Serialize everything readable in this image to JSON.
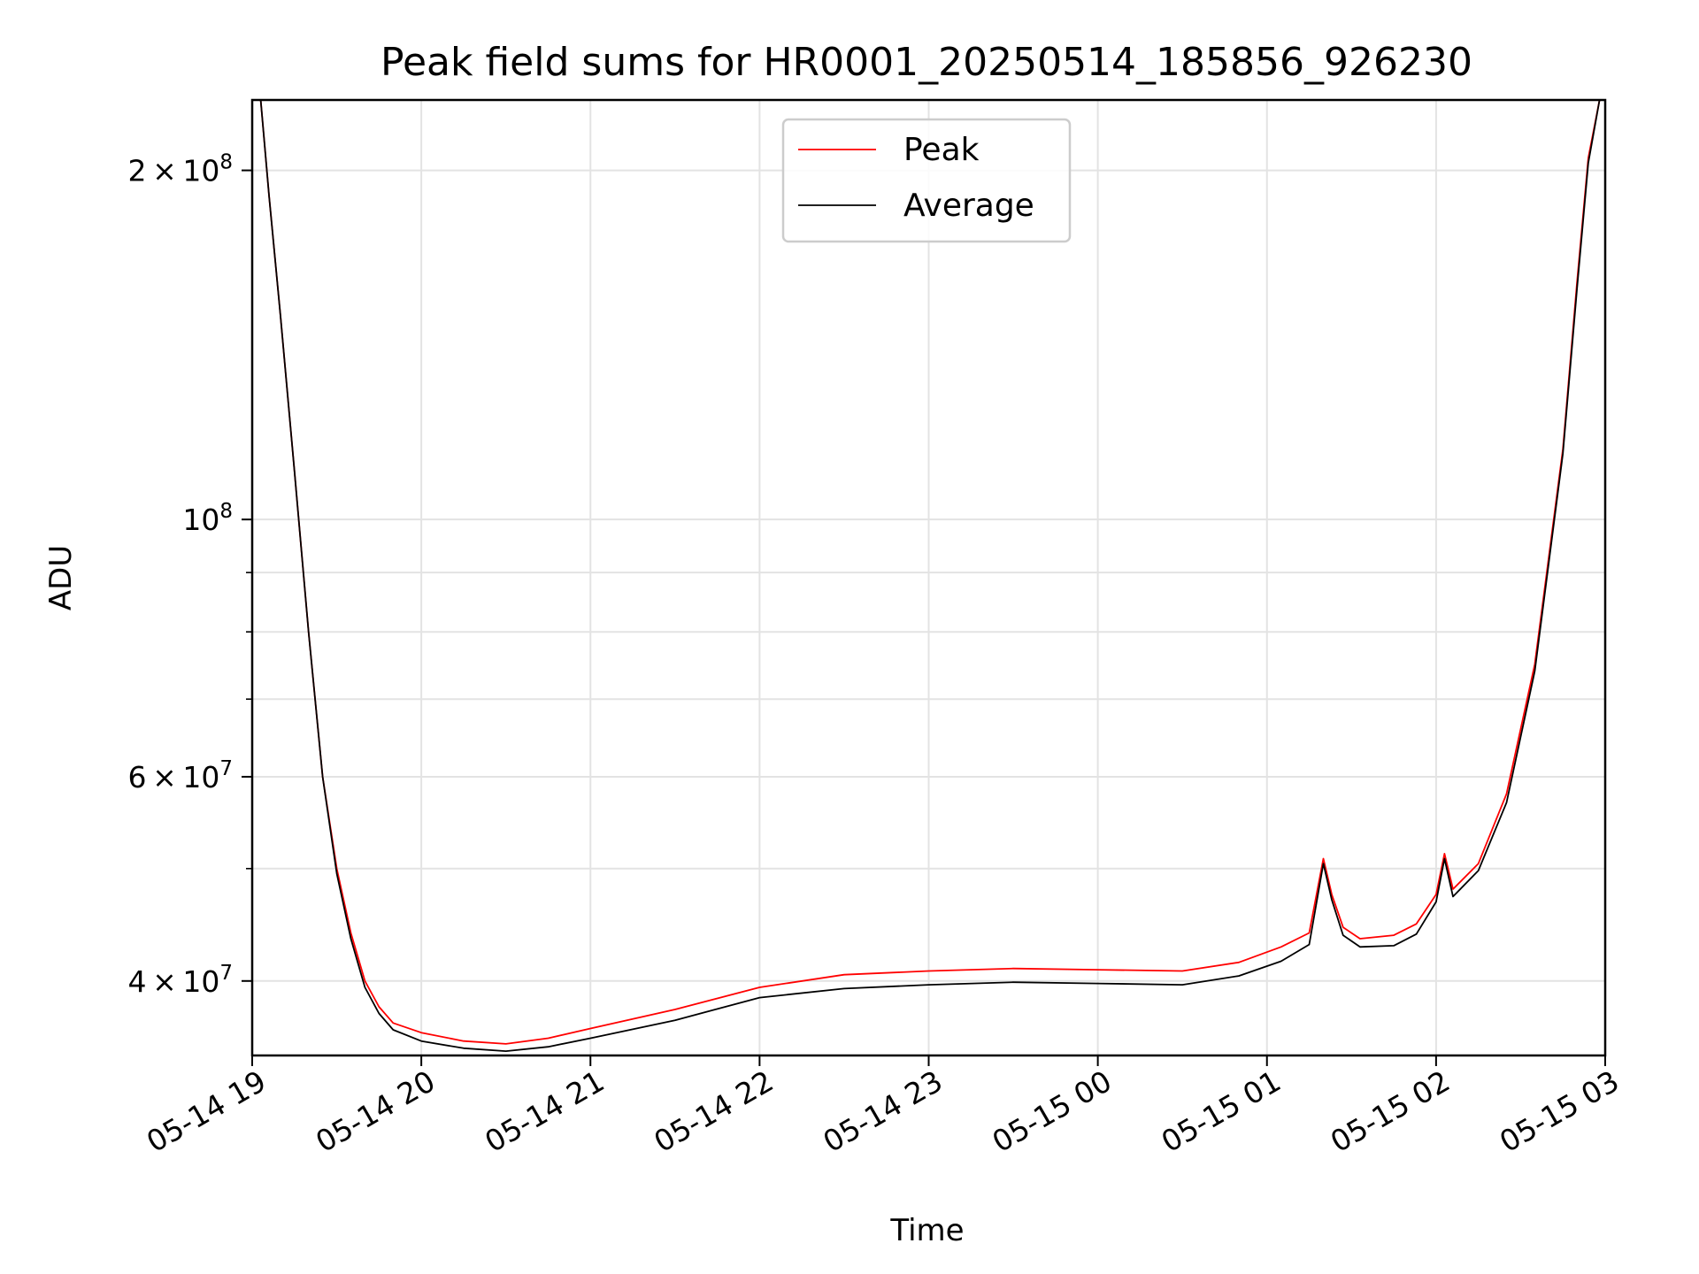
{
  "chart_data": {
    "type": "line",
    "title": "Peak field sums for HR0001_20250514_185856_926230",
    "xlabel": "Time",
    "ylabel": "ADU",
    "x_scale": "time",
    "y_scale": "log",
    "xlim": [
      "2025-05-14 19:00",
      "2025-05-15 03:00"
    ],
    "ylim": [
      34500000,
      230000000
    ],
    "x_ticks": [
      "05-14 19",
      "05-14 20",
      "05-14 21",
      "05-14 22",
      "05-14 23",
      "05-15 00",
      "05-15 01",
      "05-15 02",
      "05-15 03"
    ],
    "y_ticks": [
      {
        "value": 40000000,
        "mantissa": "4",
        "exponent": "7"
      },
      {
        "value": 60000000,
        "mantissa": "6",
        "exponent": "7"
      },
      {
        "value": 100000000,
        "mantissa": "",
        "exponent": "8"
      },
      {
        "value": 200000000,
        "mantissa": "2",
        "exponent": "8"
      }
    ],
    "grid": true,
    "legend_position": "top-center",
    "series": [
      {
        "name": "Peak",
        "color": "#ff0000",
        "points": [
          [
            "2025-05-14 19:03",
            230000000
          ],
          [
            "2025-05-14 19:06",
            190000000
          ],
          [
            "2025-05-14 19:10",
            150000000
          ],
          [
            "2025-05-14 19:15",
            110000000
          ],
          [
            "2025-05-14 19:20",
            80000000
          ],
          [
            "2025-05-14 19:25",
            60000000
          ],
          [
            "2025-05-14 19:30",
            50000000
          ],
          [
            "2025-05-14 19:35",
            44000000
          ],
          [
            "2025-05-14 19:40",
            40000000
          ],
          [
            "2025-05-14 19:45",
            38000000
          ],
          [
            "2025-05-14 19:50",
            36800000
          ],
          [
            "2025-05-14 20:00",
            36100000
          ],
          [
            "2025-05-14 20:15",
            35500000
          ],
          [
            "2025-05-14 20:30",
            35300000
          ],
          [
            "2025-05-14 20:45",
            35700000
          ],
          [
            "2025-05-14 21:00",
            36400000
          ],
          [
            "2025-05-14 21:30",
            37800000
          ],
          [
            "2025-05-14 22:00",
            39500000
          ],
          [
            "2025-05-14 22:30",
            40500000
          ],
          [
            "2025-05-14 23:00",
            40800000
          ],
          [
            "2025-05-14 23:30",
            41000000
          ],
          [
            "2025-05-15 00:00",
            40900000
          ],
          [
            "2025-05-15 00:30",
            40800000
          ],
          [
            "2025-05-15 00:50",
            41500000
          ],
          [
            "2025-05-15 01:05",
            42800000
          ],
          [
            "2025-05-15 01:15",
            44000000
          ],
          [
            "2025-05-15 01:20",
            51000000
          ],
          [
            "2025-05-15 01:23",
            47500000
          ],
          [
            "2025-05-15 01:27",
            44500000
          ],
          [
            "2025-05-15 01:33",
            43500000
          ],
          [
            "2025-05-15 01:45",
            43800000
          ],
          [
            "2025-05-15 01:53",
            44800000
          ],
          [
            "2025-05-15 02:00",
            47500000
          ],
          [
            "2025-05-15 02:03",
            51500000
          ],
          [
            "2025-05-15 02:06",
            48000000
          ],
          [
            "2025-05-15 02:15",
            50500000
          ],
          [
            "2025-05-15 02:25",
            58000000
          ],
          [
            "2025-05-15 02:35",
            75000000
          ],
          [
            "2025-05-15 02:45",
            115000000
          ],
          [
            "2025-05-15 02:50",
            160000000
          ],
          [
            "2025-05-15 02:54",
            205000000
          ],
          [
            "2025-05-15 02:58",
            230000000
          ]
        ]
      },
      {
        "name": "Average",
        "color": "#000000",
        "points": [
          [
            "2025-05-14 19:03",
            230000000
          ],
          [
            "2025-05-14 19:06",
            190000000
          ],
          [
            "2025-05-14 19:10",
            150000000
          ],
          [
            "2025-05-14 19:15",
            110000000
          ],
          [
            "2025-05-14 19:20",
            80000000
          ],
          [
            "2025-05-14 19:25",
            60000000
          ],
          [
            "2025-05-14 19:30",
            49500000
          ],
          [
            "2025-05-14 19:35",
            43500000
          ],
          [
            "2025-05-14 19:40",
            39500000
          ],
          [
            "2025-05-14 19:45",
            37500000
          ],
          [
            "2025-05-14 19:50",
            36300000
          ],
          [
            "2025-05-14 20:00",
            35500000
          ],
          [
            "2025-05-14 20:15",
            35000000
          ],
          [
            "2025-05-14 20:30",
            34800000
          ],
          [
            "2025-05-14 20:45",
            35100000
          ],
          [
            "2025-05-14 21:00",
            35700000
          ],
          [
            "2025-05-14 21:30",
            37000000
          ],
          [
            "2025-05-14 22:00",
            38700000
          ],
          [
            "2025-05-14 22:30",
            39400000
          ],
          [
            "2025-05-14 23:00",
            39700000
          ],
          [
            "2025-05-14 23:30",
            39900000
          ],
          [
            "2025-05-15 00:00",
            39800000
          ],
          [
            "2025-05-15 00:30",
            39700000
          ],
          [
            "2025-05-15 00:50",
            40400000
          ],
          [
            "2025-05-15 01:05",
            41600000
          ],
          [
            "2025-05-15 01:15",
            43000000
          ],
          [
            "2025-05-15 01:20",
            50500000
          ],
          [
            "2025-05-15 01:23",
            47000000
          ],
          [
            "2025-05-15 01:27",
            43800000
          ],
          [
            "2025-05-15 01:33",
            42800000
          ],
          [
            "2025-05-15 01:45",
            42900000
          ],
          [
            "2025-05-15 01:53",
            43900000
          ],
          [
            "2025-05-15 02:00",
            46800000
          ],
          [
            "2025-05-15 02:03",
            51000000
          ],
          [
            "2025-05-15 02:06",
            47300000
          ],
          [
            "2025-05-15 02:15",
            49800000
          ],
          [
            "2025-05-15 02:25",
            57000000
          ],
          [
            "2025-05-15 02:35",
            74000000
          ],
          [
            "2025-05-15 02:45",
            114000000
          ],
          [
            "2025-05-15 02:50",
            158000000
          ],
          [
            "2025-05-15 02:54",
            203000000
          ],
          [
            "2025-05-15 02:58",
            230000000
          ]
        ]
      }
    ]
  }
}
